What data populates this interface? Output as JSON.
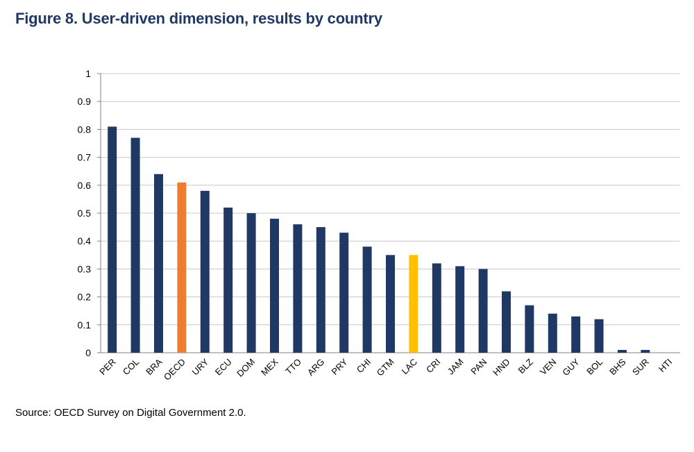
{
  "figure": {
    "title": "Figure  8. User-driven dimension, results by country",
    "source": "Source: OECD Survey on Digital Government 2.0."
  },
  "colors": {
    "default_bar": "#1f3864",
    "oecd_bar": "#ed7d31",
    "lac_bar": "#ffc000",
    "grid": "#c8c8c8",
    "title": "#1f3864"
  },
  "chart_data": {
    "type": "bar",
    "title": "Figure  8. User-driven dimension, results by country",
    "xlabel": "",
    "ylabel": "",
    "ylim": [
      0,
      1
    ],
    "yticks": [
      "0",
      "0.1",
      "0.2",
      "0.3",
      "0.4",
      "0.5",
      "0.6",
      "0.7",
      "0.8",
      "0.9",
      "1"
    ],
    "grid": true,
    "categories": [
      "PER",
      "COL",
      "BRA",
      "OECD",
      "URY",
      "ECU",
      "DOM",
      "MEX",
      "TTO",
      "ARG",
      "PRY",
      "CHI",
      "GTM",
      "LAC",
      "CRI",
      "JAM",
      "PAN",
      "HND",
      "BLZ",
      "VEN",
      "GUY",
      "BOL",
      "BHS",
      "SUR",
      "HTI"
    ],
    "values": [
      0.81,
      0.77,
      0.64,
      0.61,
      0.58,
      0.52,
      0.5,
      0.48,
      0.46,
      0.45,
      0.43,
      0.38,
      0.35,
      0.35,
      0.32,
      0.31,
      0.3,
      0.22,
      0.17,
      0.14,
      0.13,
      0.12,
      0.01,
      0.01,
      0
    ],
    "highlights": {
      "OECD": "#ed7d31",
      "LAC": "#ffc000"
    }
  }
}
